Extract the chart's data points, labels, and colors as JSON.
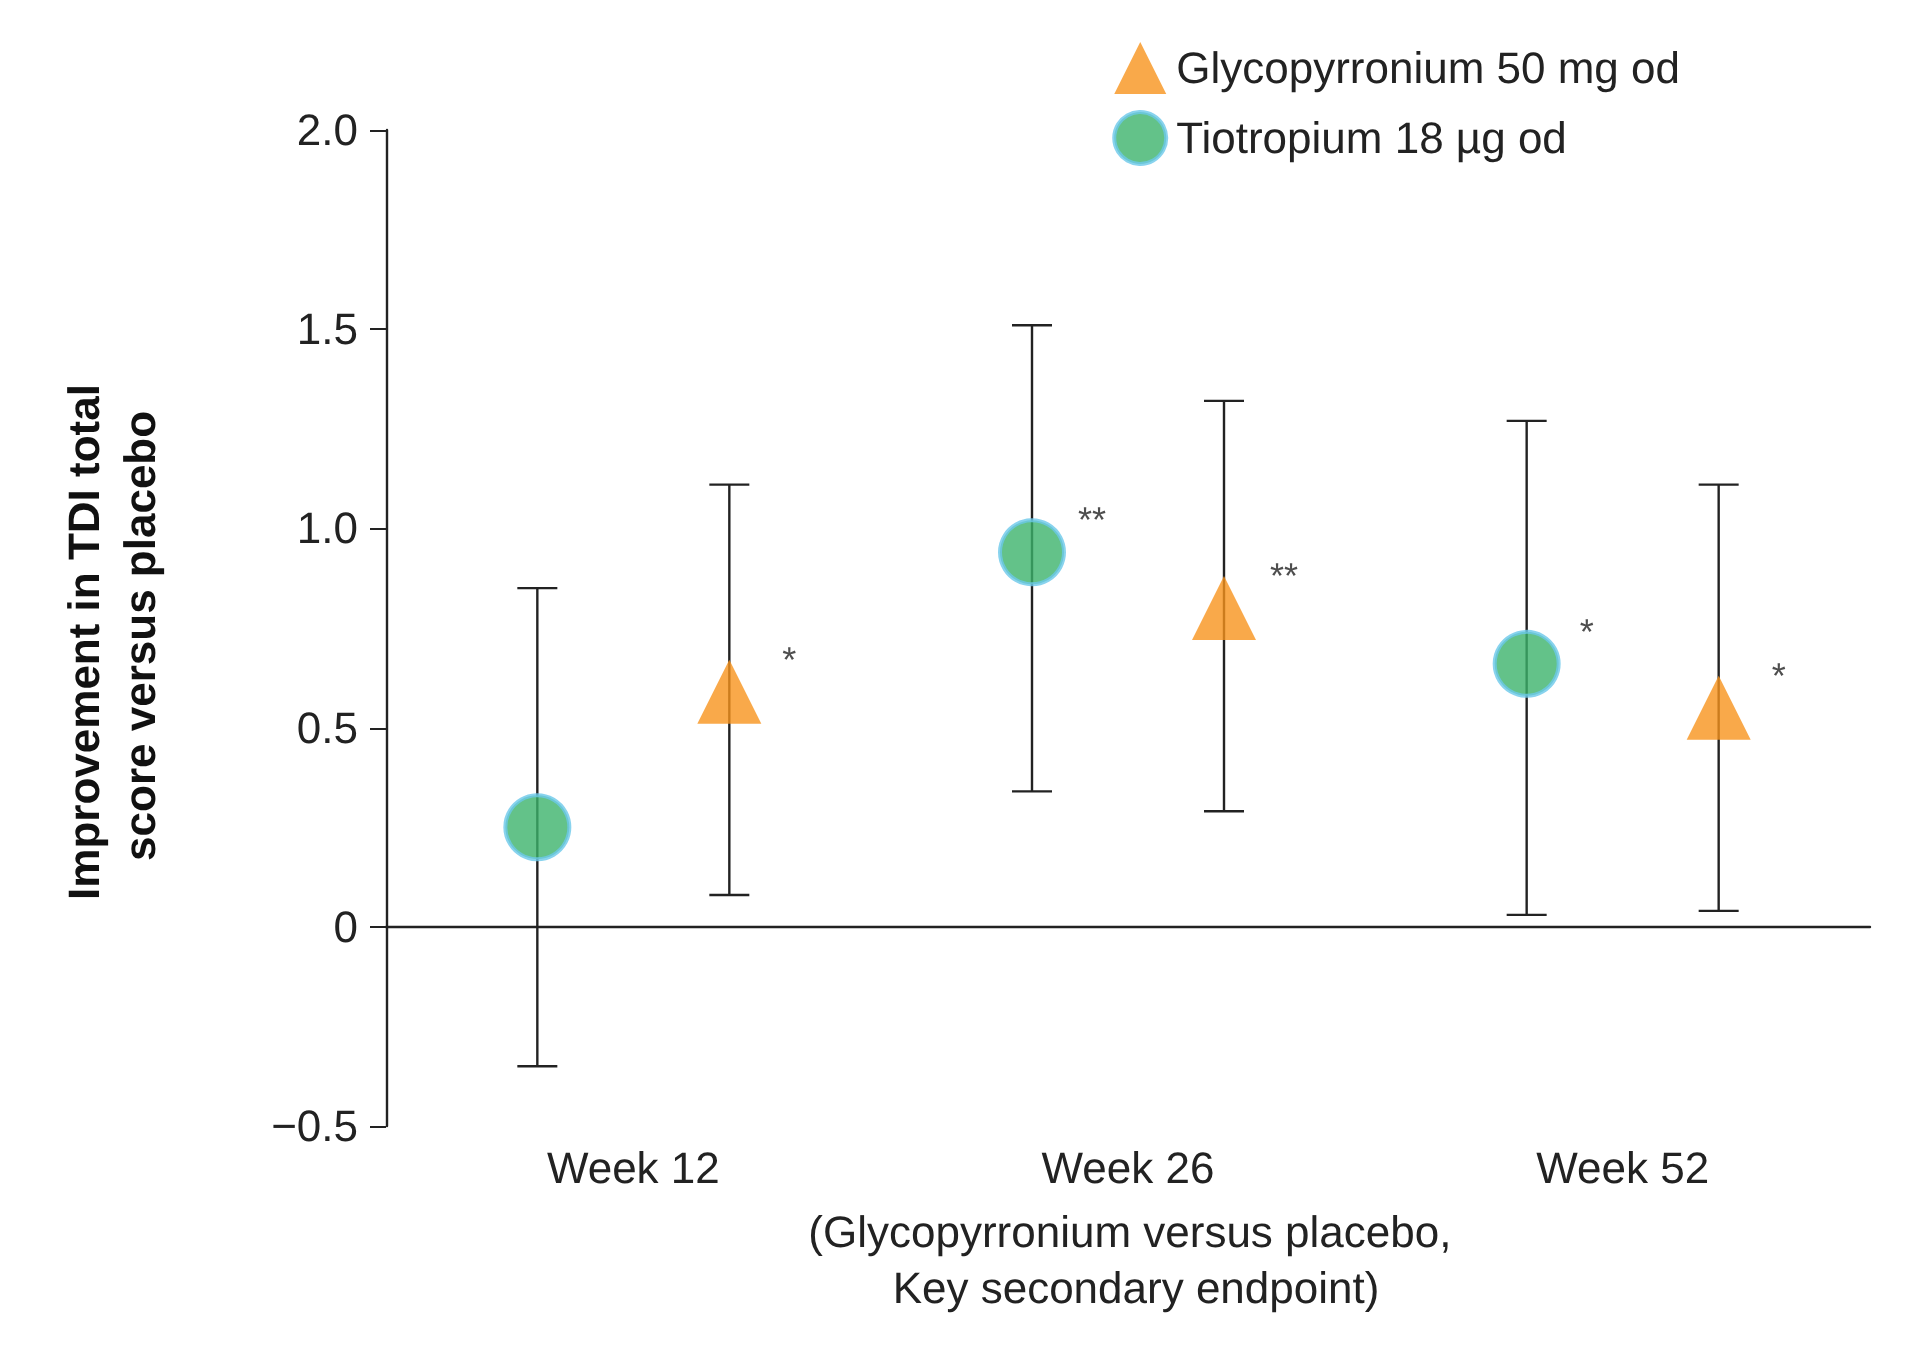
{
  "chart_data": {
    "type": "scatter",
    "ylabel": "Improvement in TDI total score versus placebo",
    "xlabel": "(Glycopyrronium versus placebo, Key secondary endpoint)",
    "categories": [
      "Week 12",
      "Week 26",
      "Week 52"
    ],
    "series": [
      {
        "name": "Glycopyrronium 50 mg od",
        "color": "#f7941d",
        "marker": "triangle",
        "values": [
          0.59,
          0.8,
          0.55
        ],
        "value_labels": [
          "*",
          "**",
          "*"
        ],
        "errors": [
          [
            0.08,
            1.11
          ],
          [
            0.29,
            1.32
          ],
          [
            0.04,
            1.11
          ]
        ]
      },
      {
        "name": "Tiotropium 18 µg od",
        "color": "#3cb36b",
        "marker": "circle",
        "values": [
          0.25,
          0.94,
          0.66
        ],
        "value_labels": [
          null,
          "**",
          "*"
        ],
        "errors": [
          [
            -0.35,
            0.85
          ],
          [
            0.34,
            1.51
          ],
          [
            0.03,
            1.27
          ]
        ]
      }
    ],
    "ylim": [
      -0.5,
      2
    ],
    "yticks": [
      {
        "value": -0.5,
        "label": "−0.5"
      },
      0,
      {
        "value": 0.5,
        "label": "0.5"
      },
      {
        "value": 1,
        "label": "1.0"
      },
      {
        "value": 1.5,
        "label": "1.5"
      },
      {
        "value": 2,
        "label": "2.0"
      }
    ],
    "legend": "top right"
  }
}
